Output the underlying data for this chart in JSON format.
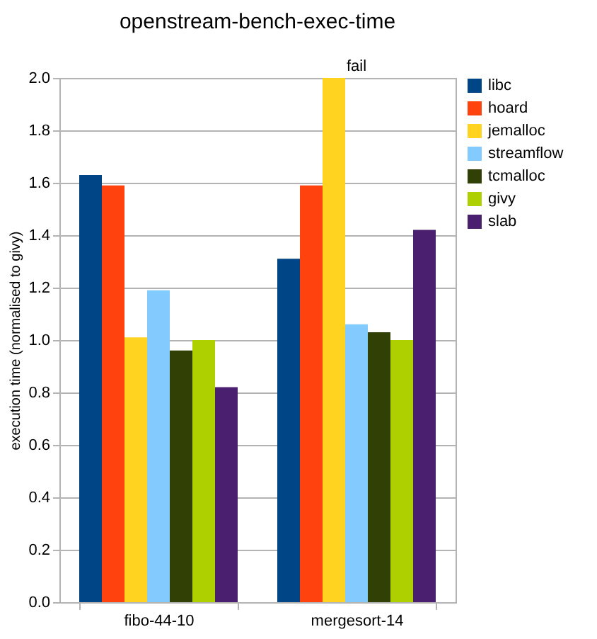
{
  "chart_data": {
    "type": "bar",
    "title": "openstream-bench-exec-time",
    "ylabel": "execution time (normalised to givy)",
    "categories": [
      "fibo-44-10",
      "mergesort-14"
    ],
    "series": [
      {
        "name": "libc",
        "color": "#004586",
        "values": [
          1.63,
          1.31
        ]
      },
      {
        "name": "hoard",
        "color": "#ff420e",
        "values": [
          1.59,
          1.59
        ]
      },
      {
        "name": "jemalloc",
        "color": "#ffd320",
        "values": [
          1.01,
          2.0
        ]
      },
      {
        "name": "streamflow",
        "color": "#83caff",
        "values": [
          1.19,
          1.06
        ]
      },
      {
        "name": "tcmalloc",
        "color": "#314004",
        "values": [
          0.96,
          1.03
        ]
      },
      {
        "name": "givy",
        "color": "#aecf00",
        "values": [
          1.0,
          1.0
        ]
      },
      {
        "name": "slab",
        "color": "#4b1f6f",
        "values": [
          0.82,
          1.42
        ]
      }
    ],
    "annotations": [
      "fail"
    ],
    "ylim": [
      0,
      2.0
    ],
    "yticks": [
      {
        "value": 0,
        "label": "0.0"
      },
      0.2,
      0.4,
      0.6,
      0.8,
      {
        "value": 1,
        "label": "1.0"
      },
      1.2,
      1.4,
      1.6,
      1.8,
      {
        "value": 2,
        "label": "2.0"
      }
    ],
    "grid": "y",
    "legend": "right"
  }
}
